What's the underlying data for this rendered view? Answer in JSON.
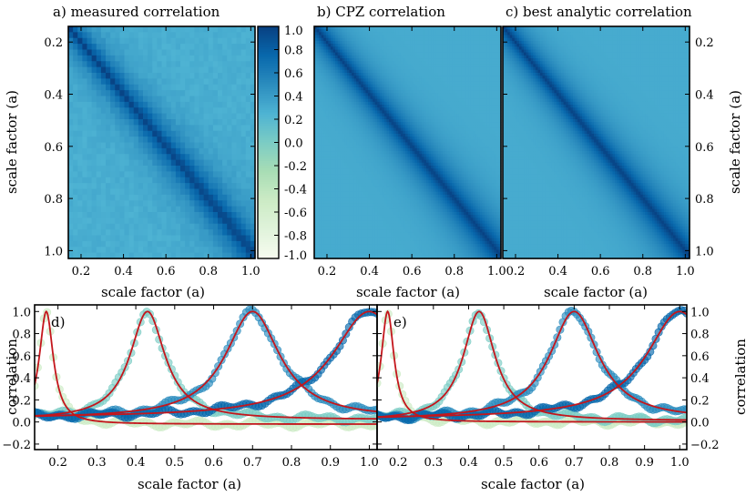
{
  "figure": {
    "panel_titles": [
      "a) measured correlation",
      "b) CPZ correlation",
      "c) best analytic correlation"
    ],
    "heatmap_xlabel": "scale factor (a)",
    "heatmap_ylabel": "scale factor (a)",
    "line_xlabel": "scale factor (a)",
    "line_ylabel": "correlation",
    "line_panel_labels": [
      "d)",
      "e)"
    ]
  },
  "colors": {
    "colormap": [
      "#f7fcf0",
      "#e0f3db",
      "#ccebc5",
      "#a8ddb5",
      "#7bccc4",
      "#4eb3d3",
      "#2b8cbe",
      "#0868ac",
      "#084081"
    ],
    "model_line": "#c4161c"
  },
  "chart_data": [
    {
      "id": "a",
      "type": "heatmap",
      "title": "a) measured correlation",
      "xlabel": "scale factor (a)",
      "ylabel": "scale factor (a)",
      "xlim": [
        0.14,
        1.02
      ],
      "ylim": [
        1.03,
        0.14
      ],
      "xticks": [
        0.2,
        0.4,
        0.6,
        0.8,
        1.0
      ],
      "xtick_labels": [
        "0.2",
        "0.4",
        "0.6",
        "0.8",
        "1.0"
      ],
      "yticks": [
        0.2,
        0.4,
        0.6,
        0.8,
        1.0
      ],
      "ytick_labels": [
        "0.2",
        "0.4",
        "0.6",
        "0.8",
        "1.0"
      ],
      "grid_cells": 40,
      "value_range": [
        -1.0,
        1.0
      ],
      "model": {
        "diagonal": 1.0,
        "floor": 0.28,
        "width_at_0.2": 0.07,
        "width_growth": 0.04,
        "noisy": true
      }
    },
    {
      "id": "colorbar",
      "type": "colorbar",
      "range": [
        -1.0,
        1.0
      ],
      "ticks": [
        1.0,
        0.8,
        0.6,
        0.4,
        0.2,
        0.0,
        -0.2,
        -0.4,
        -0.6,
        -0.8,
        -1.0
      ],
      "tick_labels": [
        "1.0",
        "0.8",
        "0.6",
        "0.4",
        "0.2",
        "0.0",
        "-0.2",
        "-0.4",
        "-0.6",
        "-0.8",
        "-1.0"
      ]
    },
    {
      "id": "b",
      "type": "heatmap",
      "title": "b) CPZ correlation",
      "xlabel": "scale factor (a)",
      "xlim": [
        0.14,
        1.02
      ],
      "ylim": [
        1.03,
        0.14
      ],
      "xticks": [
        0.2,
        0.4,
        0.6,
        0.8,
        1.0
      ],
      "xtick_labels": [
        "0.2",
        "0.4",
        "0.6",
        "0.8",
        "1.0"
      ],
      "grid_cells": 80,
      "value_range": [
        -1.0,
        1.0
      ],
      "model": {
        "diagonal": 1.0,
        "floor": 0.3,
        "width_at_0.2": 0.07,
        "width_growth": 0.04,
        "noisy": false
      }
    },
    {
      "id": "c",
      "type": "heatmap",
      "title": "c) best analytic correlation",
      "xlabel": "scale factor (a)",
      "ylabel": "scale factor (a)",
      "xlim": [
        0.14,
        1.02
      ],
      "ylim": [
        1.03,
        0.14
      ],
      "xticks": [
        0.2,
        0.4,
        0.6,
        0.8,
        1.0
      ],
      "xtick_labels": [
        "0.2",
        "0.4",
        "0.6",
        "0.8",
        "1.0"
      ],
      "yticks": [
        0.2,
        0.4,
        0.6,
        0.8,
        1.0
      ],
      "ytick_labels": [
        "0.2",
        "0.4",
        "0.6",
        "0.8",
        "1.0"
      ],
      "grid_cells": 80,
      "value_range": [
        -1.0,
        1.0
      ],
      "model": {
        "diagonal": 1.0,
        "floor": 0.3,
        "width_at_0.2": 0.07,
        "width_growth": 0.04,
        "noisy": false
      }
    },
    {
      "id": "d",
      "type": "scatter",
      "label": "d)",
      "xlabel": "scale factor (a)",
      "ylabel": "correlation",
      "xlim": [
        0.14,
        1.02
      ],
      "ylim": [
        -0.25,
        1.06
      ],
      "xticks": [
        0.2,
        0.3,
        0.4,
        0.5,
        0.6,
        0.7,
        0.8,
        0.9,
        1.0
      ],
      "xtick_labels": [
        "0.2",
        "0.3",
        "0.4",
        "0.5",
        "0.6",
        "0.7",
        "0.8",
        "0.9",
        "1.0"
      ],
      "yticks": [
        1.0,
        0.8,
        0.6,
        0.4,
        0.2,
        0.0,
        -0.2
      ],
      "ytick_labels": [
        "1.0",
        "0.8",
        "0.6",
        "0.4",
        "0.2",
        "0.0",
        "−0.2"
      ],
      "series": [
        {
          "name": "a = 0.17",
          "center": 0.17,
          "width": 0.022,
          "tail": -0.02,
          "color": "#ccebc5",
          "model": true
        },
        {
          "name": "a = 0.43",
          "center": 0.43,
          "width": 0.055,
          "tail": 0.02,
          "color": "#7bccc4",
          "model": true
        },
        {
          "name": "a = 0.70",
          "center": 0.7,
          "width": 0.085,
          "tail": 0.03,
          "color": "#2b8cbe",
          "model": true
        },
        {
          "name": "a = 1.00",
          "center": 1.0,
          "width": 0.115,
          "tail": 0.04,
          "color": "#0868ac",
          "model": true
        }
      ]
    },
    {
      "id": "e",
      "type": "scatter",
      "label": "e)",
      "xlabel": "scale factor (a)",
      "ylabel": "correlation",
      "xlim": [
        0.14,
        1.02
      ],
      "ylim": [
        -0.25,
        1.06
      ],
      "xticks": [
        0.2,
        0.3,
        0.4,
        0.5,
        0.6,
        0.7,
        0.8,
        0.9,
        1.0
      ],
      "xtick_labels": [
        "0.2",
        "0.3",
        "0.4",
        "0.5",
        "0.6",
        "0.7",
        "0.8",
        "0.9",
        "1.0"
      ],
      "yticks": [
        1.0,
        0.8,
        0.6,
        0.4,
        0.2,
        0.0,
        -0.2
      ],
      "ytick_labels": [
        "1.0",
        "0.8",
        "0.6",
        "0.4",
        "0.2",
        "0.0",
        "−0.2"
      ],
      "series": [
        {
          "name": "a = 0.17",
          "center": 0.17,
          "width": 0.022,
          "tail": 0.0,
          "color": "#ccebc5",
          "model": true
        },
        {
          "name": "a = 0.43",
          "center": 0.43,
          "width": 0.055,
          "tail": 0.01,
          "color": "#7bccc4",
          "model": true
        },
        {
          "name": "a = 0.70",
          "center": 0.7,
          "width": 0.085,
          "tail": 0.02,
          "color": "#2b8cbe",
          "model": true
        },
        {
          "name": "a = 1.00",
          "center": 1.0,
          "width": 0.115,
          "tail": 0.03,
          "color": "#0868ac",
          "model": true
        }
      ]
    }
  ]
}
